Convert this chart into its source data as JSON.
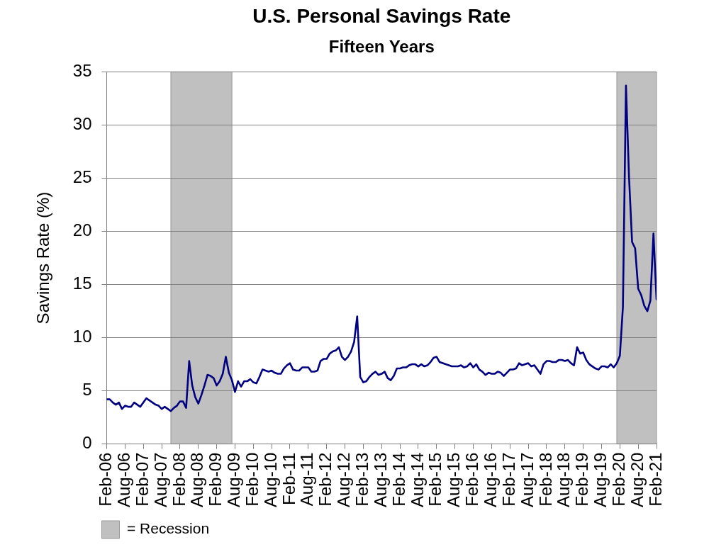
{
  "chart_data": {
    "type": "line",
    "title": "U.S. Personal Savings Rate",
    "subtitle": "Fifteen Years",
    "ylabel": "Savings Rate (%)",
    "x": [
      "2006-02",
      "2006-03",
      "2006-04",
      "2006-05",
      "2006-06",
      "2006-07",
      "2006-08",
      "2006-09",
      "2006-10",
      "2006-11",
      "2006-12",
      "2007-01",
      "2007-02",
      "2007-03",
      "2007-04",
      "2007-05",
      "2007-06",
      "2007-07",
      "2007-08",
      "2007-09",
      "2007-10",
      "2007-11",
      "2007-12",
      "2008-01",
      "2008-02",
      "2008-03",
      "2008-04",
      "2008-05",
      "2008-06",
      "2008-07",
      "2008-08",
      "2008-09",
      "2008-10",
      "2008-11",
      "2008-12",
      "2009-01",
      "2009-02",
      "2009-03",
      "2009-04",
      "2009-05",
      "2009-06",
      "2009-07",
      "2009-08",
      "2009-09",
      "2009-10",
      "2009-11",
      "2009-12",
      "2010-01",
      "2010-02",
      "2010-03",
      "2010-04",
      "2010-05",
      "2010-06",
      "2010-07",
      "2010-08",
      "2010-09",
      "2010-10",
      "2010-11",
      "2010-12",
      "2011-01",
      "2011-02",
      "2011-03",
      "2011-04",
      "2011-05",
      "2011-06",
      "2011-07",
      "2011-08",
      "2011-09",
      "2011-10",
      "2011-11",
      "2011-12",
      "2012-01",
      "2012-02",
      "2012-03",
      "2012-04",
      "2012-05",
      "2012-06",
      "2012-07",
      "2012-08",
      "2012-09",
      "2012-10",
      "2012-11",
      "2012-12",
      "2013-01",
      "2013-02",
      "2013-03",
      "2013-04",
      "2013-05",
      "2013-06",
      "2013-07",
      "2013-08",
      "2013-09",
      "2013-10",
      "2013-11",
      "2013-12",
      "2014-01",
      "2014-02",
      "2014-03",
      "2014-04",
      "2014-05",
      "2014-06",
      "2014-07",
      "2014-08",
      "2014-09",
      "2014-10",
      "2014-11",
      "2014-12",
      "2015-01",
      "2015-02",
      "2015-03",
      "2015-04",
      "2015-05",
      "2015-06",
      "2015-07",
      "2015-08",
      "2015-09",
      "2015-10",
      "2015-11",
      "2015-12",
      "2016-01",
      "2016-02",
      "2016-03",
      "2016-04",
      "2016-05",
      "2016-06",
      "2016-07",
      "2016-08",
      "2016-09",
      "2016-10",
      "2016-11",
      "2016-12",
      "2017-01",
      "2017-02",
      "2017-03",
      "2017-04",
      "2017-05",
      "2017-06",
      "2017-07",
      "2017-08",
      "2017-09",
      "2017-10",
      "2017-11",
      "2017-12",
      "2018-01",
      "2018-02",
      "2018-03",
      "2018-04",
      "2018-05",
      "2018-06",
      "2018-07",
      "2018-08",
      "2018-09",
      "2018-10",
      "2018-11",
      "2018-12",
      "2019-01",
      "2019-02",
      "2019-03",
      "2019-04",
      "2019-05",
      "2019-06",
      "2019-07",
      "2019-08",
      "2019-09",
      "2019-10",
      "2019-11",
      "2019-12",
      "2020-01",
      "2020-02",
      "2020-03",
      "2020-04",
      "2020-05",
      "2020-06",
      "2020-07",
      "2020-08",
      "2020-09",
      "2020-10",
      "2020-11",
      "2020-12",
      "2021-01",
      "2021-02"
    ],
    "values": [
      4.2,
      4.2,
      3.9,
      3.7,
      3.9,
      3.3,
      3.6,
      3.5,
      3.5,
      3.9,
      3.7,
      3.5,
      3.9,
      4.3,
      4.1,
      3.9,
      3.7,
      3.6,
      3.3,
      3.5,
      3.3,
      3.1,
      3.4,
      3.6,
      4.0,
      4.0,
      3.4,
      7.8,
      5.5,
      4.4,
      3.8,
      4.6,
      5.5,
      6.5,
      6.4,
      6.2,
      5.5,
      5.9,
      6.6,
      8.2,
      6.7,
      6.0,
      4.9,
      5.9,
      5.4,
      5.9,
      5.9,
      6.1,
      5.8,
      5.7,
      6.3,
      7.0,
      6.9,
      6.8,
      6.9,
      6.7,
      6.6,
      6.6,
      7.1,
      7.4,
      7.6,
      7.0,
      6.9,
      6.9,
      7.2,
      7.2,
      7.2,
      6.8,
      6.8,
      6.9,
      7.8,
      8.0,
      8.0,
      8.5,
      8.7,
      8.8,
      9.1,
      8.2,
      7.9,
      8.2,
      8.7,
      9.6,
      12.0,
      6.3,
      5.8,
      5.9,
      6.3,
      6.6,
      6.8,
      6.5,
      6.6,
      6.8,
      6.2,
      6.0,
      6.4,
      7.1,
      7.1,
      7.2,
      7.2,
      7.4,
      7.5,
      7.5,
      7.3,
      7.5,
      7.3,
      7.4,
      7.7,
      8.1,
      8.2,
      7.7,
      7.6,
      7.5,
      7.4,
      7.3,
      7.3,
      7.3,
      7.4,
      7.2,
      7.3,
      7.6,
      7.2,
      7.5,
      7.0,
      6.8,
      6.5,
      6.7,
      6.6,
      6.6,
      6.8,
      6.7,
      6.4,
      6.7,
      7.0,
      7.0,
      7.1,
      7.6,
      7.4,
      7.5,
      7.6,
      7.3,
      7.4,
      7.0,
      6.6,
      7.5,
      7.8,
      7.8,
      7.7,
      7.7,
      7.9,
      7.9,
      7.8,
      7.9,
      7.6,
      7.4,
      9.1,
      8.5,
      8.6,
      7.9,
      7.5,
      7.3,
      7.1,
      7.0,
      7.3,
      7.3,
      7.2,
      7.5,
      7.2,
      7.6,
      8.3,
      12.9,
      33.7,
      25.1,
      19.0,
      18.4,
      14.6,
      14.0,
      13.0,
      12.5,
      13.5,
      19.8,
      13.6
    ],
    "color": "#000080",
    "marker": "none",
    "xlim": [
      "2006-02",
      "2021-02"
    ],
    "xticks": [
      {
        "value": "2006-02",
        "label": "Feb-06"
      },
      {
        "value": "2006-08",
        "label": "Aug-06"
      },
      {
        "value": "2007-02",
        "label": "Feb-07"
      },
      {
        "value": "2007-08",
        "label": "Aug-07"
      },
      {
        "value": "2008-02",
        "label": "Feb-08"
      },
      {
        "value": "2008-08",
        "label": "Aug-08"
      },
      {
        "value": "2009-02",
        "label": "Feb-09"
      },
      {
        "value": "2009-08",
        "label": "Aug-09"
      },
      {
        "value": "2010-02",
        "label": "Feb-10"
      },
      {
        "value": "2010-08",
        "label": "Aug-10"
      },
      {
        "value": "2011-02",
        "label": "Feb-11"
      },
      {
        "value": "2011-08",
        "label": "Aug-11"
      },
      {
        "value": "2012-02",
        "label": "Feb-12"
      },
      {
        "value": "2012-08",
        "label": "Aug-12"
      },
      {
        "value": "2013-02",
        "label": "Feb-13"
      },
      {
        "value": "2013-08",
        "label": "Aug-13"
      },
      {
        "value": "2014-02",
        "label": "Feb-14"
      },
      {
        "value": "2014-08",
        "label": "Aug-14"
      },
      {
        "value": "2015-02",
        "label": "Feb-15"
      },
      {
        "value": "2015-08",
        "label": "Aug-15"
      },
      {
        "value": "2016-02",
        "label": "Feb-16"
      },
      {
        "value": "2016-08",
        "label": "Aug-16"
      },
      {
        "value": "2017-02",
        "label": "Feb-17"
      },
      {
        "value": "2017-08",
        "label": "Aug-17"
      },
      {
        "value": "2018-02",
        "label": "Feb-18"
      },
      {
        "value": "2018-08",
        "label": "Aug-18"
      },
      {
        "value": "2019-02",
        "label": "Feb-19"
      },
      {
        "value": "2019-08",
        "label": "Aug-19"
      },
      {
        "value": "2020-02",
        "label": "Feb-20"
      },
      {
        "value": "2020-08",
        "label": "Aug-20"
      },
      {
        "value": "2021-02",
        "label": "Feb-21"
      }
    ],
    "ylim": [
      0,
      35
    ],
    "yticks": [
      0,
      5,
      10,
      15,
      20,
      25,
      30,
      35
    ],
    "bands": [
      {
        "axis": "x",
        "from": "2007-11",
        "to": "2009-07",
        "color": "#c0c0c0",
        "label": "= Recession"
      },
      {
        "axis": "x",
        "from": "2020-01",
        "to": "2021-02",
        "color": "#c0c0c0"
      }
    ],
    "grid": "y",
    "legend": "bottom left"
  }
}
